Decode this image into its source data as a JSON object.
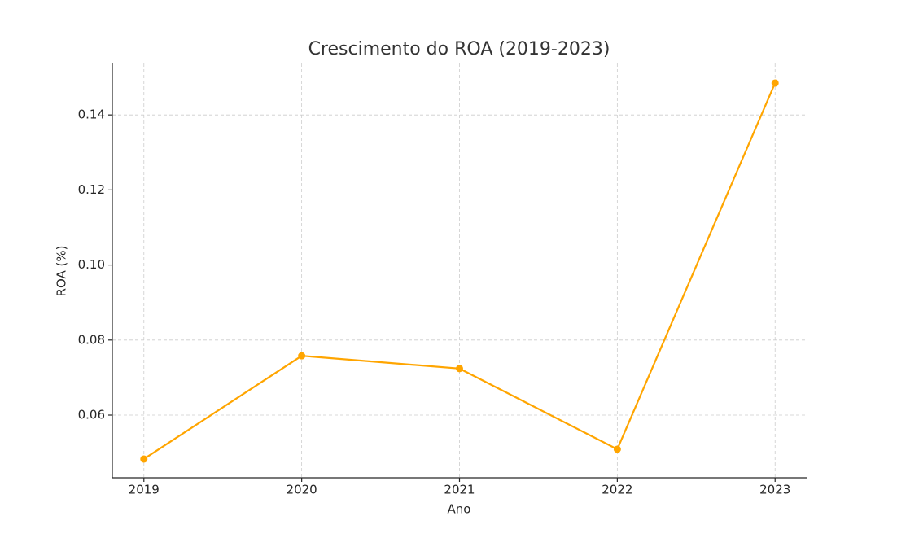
{
  "chart_data": {
    "type": "line",
    "title": "Crescimento do ROA (2019-2023)",
    "x_label": "Ano",
    "y_label": "ROA (%)",
    "x": [
      2019,
      2020,
      2021,
      2022,
      2023
    ],
    "series": [
      {
        "name": "ROA",
        "color": "#ffa500",
        "values": [
          0.0483,
          0.0758,
          0.0724,
          0.0509,
          0.1485
        ]
      }
    ],
    "xlim": [
      2018.8,
      2023.2
    ],
    "xticks": [
      2019,
      2020,
      2021,
      2022,
      2023
    ],
    "ylim": [
      0.0433,
      0.1537
    ],
    "yticks": [
      0.06,
      0.08,
      {
        "value": 0.1,
        "label": "0.10"
      },
      0.12,
      0.14
    ],
    "grid": true
  }
}
